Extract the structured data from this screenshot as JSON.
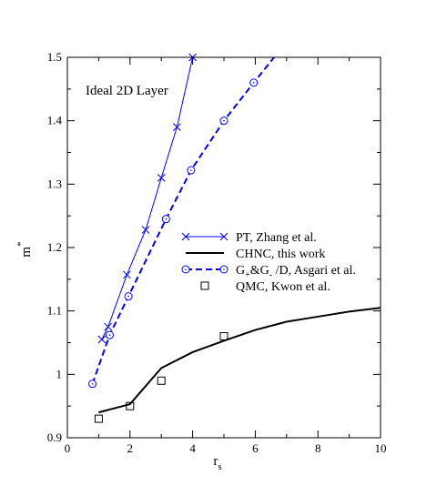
{
  "chart_data": {
    "type": "line",
    "annotation": "Ideal 2D Layer",
    "xlabel": "r",
    "xlabel_sub": "s",
    "ylabel": "m",
    "ylabel_sup": "*",
    "xlim": [
      0,
      10
    ],
    "ylim": [
      0.9,
      1.5
    ],
    "xticks": [
      "0",
      "2",
      "4",
      "6",
      "8",
      "10"
    ],
    "yticks": [
      "0.9",
      "1",
      "1.1",
      "1.2",
      "1.3",
      "1.4",
      "1.5"
    ],
    "grid": false,
    "legend_position": "center-right",
    "series": [
      {
        "name": "PT,  Zhang et al.",
        "style": "solid-thin",
        "marker": "x",
        "color": "#0000ff",
        "x": [
          1.1,
          1.3,
          1.9,
          2.5,
          3.0,
          3.5,
          4.0
        ],
        "y": [
          1.055,
          1.075,
          1.157,
          1.228,
          1.31,
          1.39,
          1.5
        ]
      },
      {
        "name": "CHNC, this work",
        "style": "solid-thick",
        "marker": "none",
        "color": "#000000",
        "x": [
          1.0,
          2.0,
          3.0,
          4.0,
          5.0,
          6.0,
          7.0,
          8.0,
          9.0,
          10.0
        ],
        "y": [
          0.94,
          0.953,
          1.01,
          1.035,
          1.053,
          1.07,
          1.083,
          1.091,
          1.099,
          1.105
        ]
      },
      {
        "name_parts": [
          "G",
          "+",
          "&G",
          "-",
          " /D,  Asgari et al."
        ],
        "style": "dashed",
        "marker": "circle-dot",
        "color": "#0000ff",
        "x": [
          0.8,
          1.35,
          1.95,
          3.15,
          3.95,
          5.0,
          5.95,
          6.6
        ],
        "y": [
          0.985,
          1.062,
          1.123,
          1.245,
          1.322,
          1.4,
          1.46,
          1.5
        ],
        "marker_count": 7
      },
      {
        "name": "QMC,  Kwon et al.",
        "style": "none",
        "marker": "square",
        "color": "#000000",
        "x": [
          1.0,
          2.0,
          3.0,
          5.0
        ],
        "y": [
          0.93,
          0.95,
          0.99,
          1.06
        ]
      }
    ]
  }
}
